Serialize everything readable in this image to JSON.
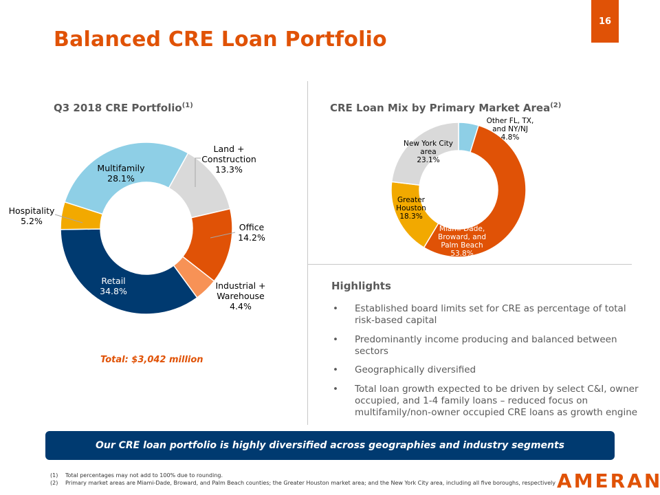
{
  "page": {
    "number": "16",
    "title": "Balanced CRE Loan Portfolio"
  },
  "left_chart": {
    "title": "Q3 2018 CRE Portfolio",
    "title_note": "(1)",
    "total": "Total: $3,042 million"
  },
  "right_chart": {
    "title": "CRE Loan Mix by Primary Market Area",
    "title_note": "(2)"
  },
  "chart_data": [
    {
      "type": "pie",
      "title": "Q3 2018 CRE Portfolio",
      "donut": true,
      "slices": [
        {
          "label": "Land + Construction",
          "value": 13.3,
          "value_label": "13.3%",
          "color": "#d9d9d9"
        },
        {
          "label": "Office",
          "value": 14.2,
          "value_label": "14.2%",
          "color": "#e05206"
        },
        {
          "label": "Industrial + Warehouse",
          "value": 4.4,
          "value_label": "4.4%",
          "color": "#f79256"
        },
        {
          "label": "Retail",
          "value": 34.8,
          "value_label": "34.8%",
          "color": "#003a70"
        },
        {
          "label": "Hospitality",
          "value": 5.2,
          "value_label": "5.2%",
          "color": "#f2a900"
        },
        {
          "label": "Multifamily",
          "value": 28.1,
          "value_label": "28.1%",
          "color": "#8ecfe6"
        }
      ]
    },
    {
      "type": "pie",
      "title": "CRE Loan Mix by Primary Market Area",
      "donut": true,
      "slices": [
        {
          "label": "Other FL, TX, and NY/NJ",
          "value": 4.8,
          "value_label": "4.8%",
          "color": "#8ecfe6"
        },
        {
          "label": "Miami-Dade, Broward, and Palm Beach",
          "value": 53.8,
          "value_label": "53.8%",
          "color": "#e05206"
        },
        {
          "label": "Greater Houston",
          "value": 18.3,
          "value_label": "18.3%",
          "color": "#f2a900"
        },
        {
          "label": "New York City area",
          "value": 23.1,
          "value_label": "23.1%",
          "color": "#d9d9d9"
        }
      ]
    }
  ],
  "highlights": {
    "title": "Highlights",
    "items": [
      "Established board limits set for CRE as percentage of total risk-based capital",
      "Predominantly income producing and balanced between sectors",
      "Geographically diversified",
      "Total loan growth expected to be driven by select C&I, owner occupied, and 1-4 family loans – reduced focus on multifamily/non-owner occupied CRE loans as growth engine"
    ]
  },
  "banner": {
    "text": "Our CRE loan portfolio is highly diversified across geographies and industry segments"
  },
  "footnotes": [
    {
      "num": "(1)",
      "text": "Total percentages may not add to 100% due to rounding."
    },
    {
      "num": "(2)",
      "text": "Primary market areas are Miami-Dade, Broward, and Palm Beach counties; the Greater Houston market area; and the New York City area, including all five boroughs, respectively"
    }
  ],
  "logo": {
    "text": "AMERANT"
  }
}
